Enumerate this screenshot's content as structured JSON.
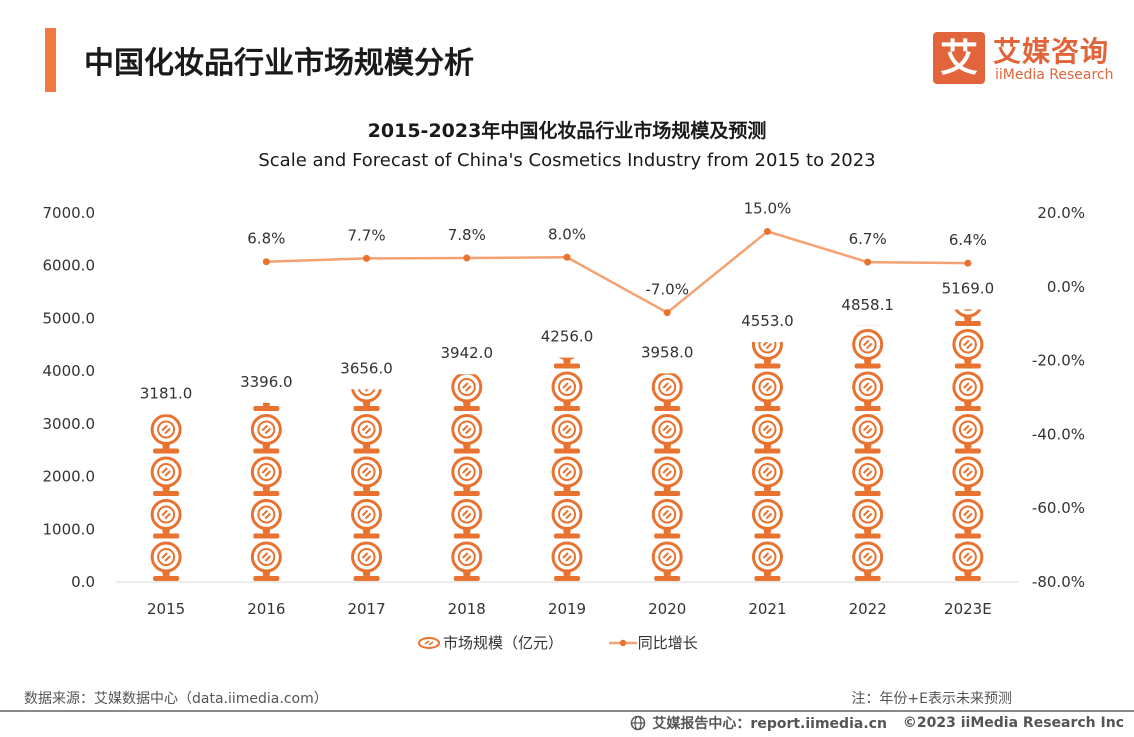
{
  "header": {
    "title": "中国化妆品行业市场规模分析",
    "logo_mark": "艾",
    "logo_cn": "艾媒咨询",
    "logo_en": "iiMedia Research"
  },
  "colors": {
    "accent": "#ee7b3d",
    "brand": "#e2643a",
    "line": "#f4a273",
    "marker": "#e8722f"
  },
  "chart_data": {
    "type": "bar",
    "title": "2015-2023年中国化妆品行业市场规模及预测",
    "subtitle": "Scale and Forecast of China's Cosmetics Industry from 2015 to 2023",
    "categories": [
      "2015",
      "2016",
      "2017",
      "2018",
      "2019",
      "2020",
      "2021",
      "2022",
      "2023E"
    ],
    "series": [
      {
        "name": "市场规模（亿元）",
        "type": "bar",
        "axis": "left",
        "values": [
          3181.0,
          3396.0,
          3656.0,
          3942.0,
          4256.0,
          3958.0,
          4553.0,
          4858.1,
          5169.0
        ],
        "labels": [
          "3181.0",
          "3396.0",
          "3656.0",
          "3942.0",
          "4256.0",
          "3958.0",
          "4553.0",
          "4858.1",
          "5169.0"
        ]
      },
      {
        "name": "同比增长",
        "type": "line",
        "axis": "right",
        "values": [
          null,
          6.8,
          7.7,
          7.8,
          8.0,
          -7.0,
          15.0,
          6.7,
          6.4
        ],
        "labels": [
          "",
          "6.8%",
          "7.7%",
          "7.8%",
          "8.0%",
          "-7.0%",
          "15.0%",
          "6.7%",
          "6.4%"
        ]
      }
    ],
    "y_left": {
      "min": 0,
      "max": 7000,
      "ticks": [
        "0.0",
        "1000.0",
        "2000.0",
        "3000.0",
        "4000.0",
        "5000.0",
        "6000.0",
        "7000.0"
      ]
    },
    "y_right": {
      "min": -80,
      "max": 20,
      "ticks": [
        "-80.0%",
        "-60.0%",
        "-40.0%",
        "-20.0%",
        "0.0%",
        "20.0%"
      ]
    },
    "grid": false,
    "legend": "bottom-center",
    "bar_icon": "compact-mirror-icon"
  },
  "legend": {
    "bar_label": "市场规模（亿元）",
    "line_label": "同比增长"
  },
  "footer": {
    "source": "数据来源：艾媒数据中心（data.iimedia.com）",
    "note": "注：年份+E表示未来预测",
    "report_center": "艾媒报告中心：report.iimedia.cn",
    "copyright": "©2023  iiMedia Research  Inc"
  }
}
